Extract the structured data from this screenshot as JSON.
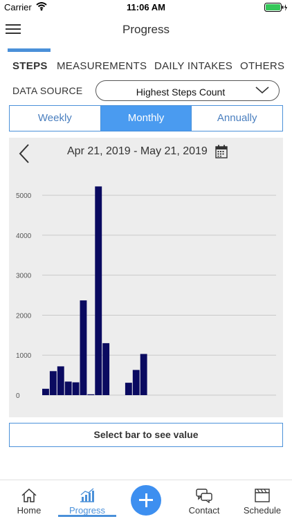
{
  "status_bar": {
    "carrier": "Carrier",
    "time": "11:06 AM",
    "wifi_icon": "wifi-icon",
    "battery_icon": "battery-charging-icon"
  },
  "nav": {
    "title": "Progress",
    "menu_icon": "hamburger-menu-icon"
  },
  "tabs": [
    {
      "label": "STEPS",
      "active": true
    },
    {
      "label": "MEASUREMENTS",
      "active": false
    },
    {
      "label": "DAILY INTAKES",
      "active": false
    },
    {
      "label": "OTHERS",
      "active": false
    }
  ],
  "data_source": {
    "label": "DATA SOURCE",
    "selected": "Highest Steps Count"
  },
  "period": {
    "options": [
      "Weekly",
      "Monthly",
      "Annually"
    ],
    "selected": "Monthly"
  },
  "date_range": "Apr 21, 2019 - May 21, 2019",
  "chart_data": {
    "type": "bar",
    "ylim": [
      0,
      5400
    ],
    "y_ticks": [
      "0",
      "1000",
      "2000",
      "3000",
      "4000",
      "5000"
    ],
    "values": [
      160,
      600,
      720,
      340,
      320,
      2370,
      20,
      5220,
      1300,
      0,
      0,
      310,
      630,
      1030,
      0,
      0,
      0,
      0,
      0,
      0,
      0,
      0,
      0,
      0,
      0,
      0,
      0,
      0,
      0,
      0,
      0
    ],
    "bar_color": "#0a0a60",
    "grid": true
  },
  "select_hint": "Select bar to see value",
  "tab_bar": {
    "items": [
      {
        "label": "Home",
        "icon": "home-icon",
        "active": false
      },
      {
        "label": "Progress",
        "icon": "progress-chart-icon",
        "active": true
      },
      {
        "label": "",
        "icon": "plus-icon",
        "active": false
      },
      {
        "label": "Contact",
        "icon": "chat-bubbles-icon",
        "active": false
      },
      {
        "label": "Schedule",
        "icon": "schedule-board-icon",
        "active": false
      }
    ]
  },
  "colors": {
    "accent": "#4a90d9",
    "segment_active": "#4a9bf0",
    "fab": "#3d8ff0"
  }
}
